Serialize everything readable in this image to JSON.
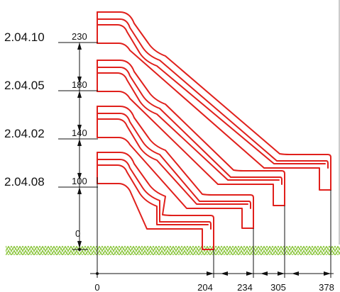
{
  "colors": {
    "slide": "#e0201c",
    "grass": "#8cc63f",
    "dimension": "#111111"
  },
  "slides": [
    {
      "code": "2.04.10",
      "height": "230"
    },
    {
      "code": "2.04.05",
      "height": "180"
    },
    {
      "code": "2.04.02",
      "height": "140"
    },
    {
      "code": "2.04.08",
      "height": "100"
    }
  ],
  "ground_height": "0",
  "widths": [
    "0",
    "204",
    "234",
    "305",
    "378"
  ]
}
